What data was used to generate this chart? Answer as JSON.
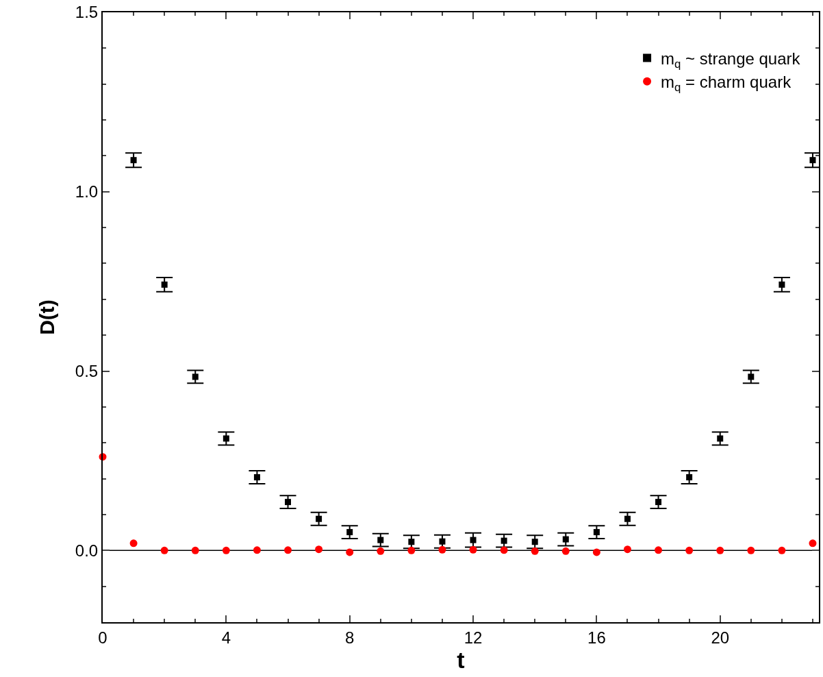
{
  "chart_data": {
    "type": "scatter",
    "xlabel": "t",
    "ylabel": "D(t)",
    "xlim": [
      0,
      23.2
    ],
    "xticks": [
      0,
      4,
      8,
      12,
      16,
      20
    ],
    "ylim": [
      -0.2,
      1.5
    ],
    "yticks": [
      {
        "value": 0,
        "label": "0.0"
      },
      0.5,
      {
        "value": 1,
        "label": "1.0"
      },
      1.5
    ],
    "grid": false,
    "legend": "top right",
    "ref_lines": [
      {
        "axis": "y",
        "value": 0,
        "color": "#000000"
      }
    ],
    "series": [
      {
        "name": "m$_{q}$ ~ strange quark",
        "color": "#000000",
        "marker": "square",
        "x": [
          1,
          2,
          3,
          4,
          5,
          6,
          7,
          8,
          9,
          10,
          11,
          12,
          13,
          14,
          15,
          16,
          17,
          18,
          19,
          20,
          21,
          22,
          23
        ],
        "values": [
          1.088,
          0.741,
          0.484,
          0.312,
          0.204,
          0.135,
          0.088,
          0.051,
          0.029,
          0.024,
          0.025,
          0.029,
          0.027,
          0.024,
          0.031,
          0.051,
          0.088,
          0.135,
          0.204,
          0.312,
          0.484,
          0.741,
          1.088
        ],
        "errors": [
          0.02,
          0.02,
          0.018,
          0.018,
          0.018,
          0.018,
          0.018,
          0.018,
          0.018,
          0.018,
          0.018,
          0.02,
          0.018,
          0.018,
          0.018,
          0.018,
          0.018,
          0.018,
          0.018,
          0.018,
          0.018,
          0.02,
          0.02
        ]
      },
      {
        "name": "m$_{q}$ = charm quark",
        "color": "#ff0000",
        "marker": "circle",
        "x": [
          0,
          1,
          2,
          3,
          4,
          5,
          6,
          7,
          8,
          9,
          10,
          11,
          12,
          13,
          14,
          15,
          16,
          17,
          18,
          19,
          20,
          21,
          22,
          23
        ],
        "values": [
          0.261,
          0.02,
          0,
          0,
          0,
          0.001,
          0.001,
          0.003,
          -0.005,
          -0.002,
          0,
          0.002,
          0.002,
          0.001,
          -0.002,
          -0.002,
          -0.005,
          0.003,
          0.001,
          0,
          0,
          0,
          0,
          0.02
        ]
      }
    ]
  }
}
